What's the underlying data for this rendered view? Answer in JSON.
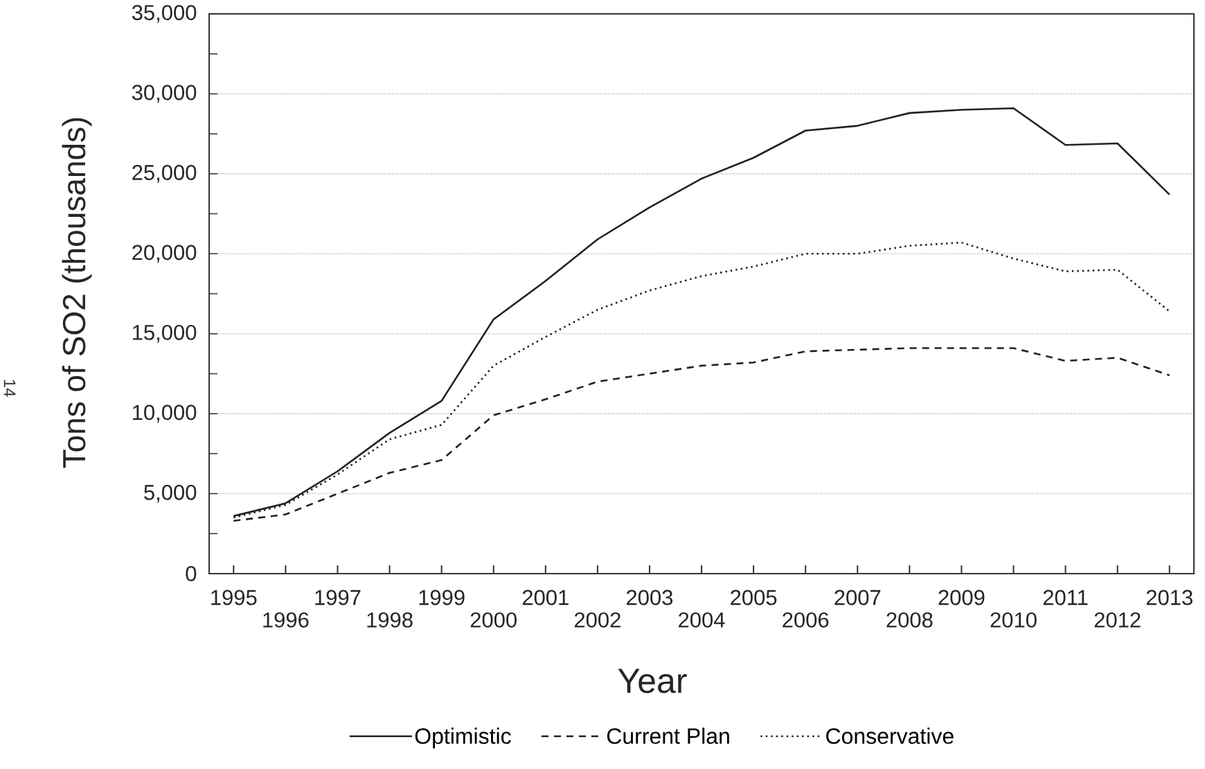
{
  "chart_data": {
    "type": "line",
    "xlabel": "Year",
    "ylabel": "Tons of SO2 (thousands)",
    "categories": [
      "1995",
      "1996",
      "1997",
      "1998",
      "1999",
      "2000",
      "2001",
      "2002",
      "2003",
      "2004",
      "2005",
      "2006",
      "2007",
      "2008",
      "2009",
      "2010",
      "2011",
      "2012",
      "2013"
    ],
    "series": [
      {
        "name": "Optimistic",
        "color": "#222222",
        "line_style": "solid",
        "values": [
          3600,
          4400,
          6400,
          8800,
          10800,
          15900,
          18300,
          20900,
          22900,
          24700,
          26000,
          27700,
          28000,
          28800,
          29000,
          29100,
          26800,
          26900,
          23700
        ]
      },
      {
        "name": "Current Plan",
        "color": "#222222",
        "line_style": "dashed",
        "values": [
          3300,
          3700,
          5000,
          6300,
          7100,
          9900,
          10900,
          12000,
          12500,
          13000,
          13200,
          13900,
          14000,
          14100,
          14100,
          14100,
          13300,
          13500,
          12400
        ]
      },
      {
        "name": "Conservative",
        "color": "#222222",
        "line_style": "dotted",
        "values": [
          3500,
          4300,
          6200,
          8400,
          9300,
          13000,
          14800,
          16500,
          17700,
          18600,
          19200,
          20000,
          20000,
          20500,
          20700,
          19700,
          18900,
          19000,
          16400
        ]
      }
    ],
    "ylim": [
      0,
      35000
    ],
    "yticks": [
      {
        "value": 0,
        "label": "0"
      },
      {
        "value": 5000,
        "label": "5,000"
      },
      {
        "value": 10000,
        "label": "10,000"
      },
      {
        "value": 15000,
        "label": "15,000"
      },
      {
        "value": 20000,
        "label": "20,000"
      },
      {
        "value": 25000,
        "label": "25,000"
      },
      {
        "value": 30000,
        "label": "30,000"
      },
      {
        "value": 35000,
        "label": "35,000"
      }
    ],
    "grid": "y",
    "legend": "bottom",
    "marker": "none",
    "annotations": [
      "14"
    ]
  }
}
